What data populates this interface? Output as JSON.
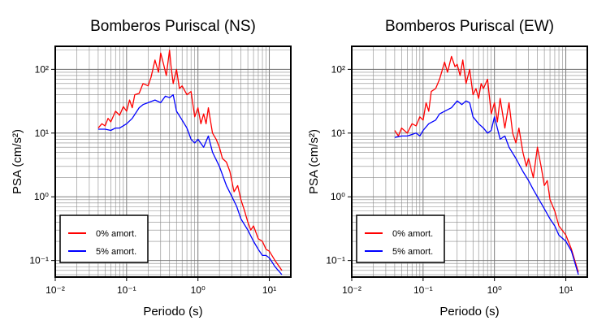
{
  "chart_data": [
    {
      "type": "line",
      "title": "Bomberos Puriscal (NS)",
      "xlabel": "Periodo (s)",
      "ylabel": "PSA (cm/s²)",
      "x_scale": "log",
      "y_scale": "log",
      "xlim": [
        0.01,
        20
      ],
      "ylim": [
        0.055,
        230
      ],
      "x_ticks": [
        "10⁻²",
        "10⁻¹",
        "10⁰",
        "10¹"
      ],
      "y_ticks": [
        "10⁻¹",
        "10⁰",
        "10¹",
        "10²"
      ],
      "grid": true,
      "legend_placement": "bottom-left",
      "series": [
        {
          "name": "0% amort.",
          "color": "#ff0000",
          "x": [
            0.04,
            0.045,
            0.05,
            0.055,
            0.06,
            0.07,
            0.08,
            0.09,
            0.1,
            0.11,
            0.12,
            0.13,
            0.15,
            0.17,
            0.2,
            0.22,
            0.25,
            0.28,
            0.3,
            0.33,
            0.36,
            0.4,
            0.42,
            0.45,
            0.5,
            0.55,
            0.6,
            0.7,
            0.8,
            0.9,
            1.0,
            1.1,
            1.2,
            1.3,
            1.4,
            1.6,
            1.8,
            2.0,
            2.2,
            2.5,
            2.8,
            3.2,
            3.6,
            4.0,
            4.5,
            5.0,
            5.5,
            6.0,
            7.0,
            8.0,
            9.0,
            10.0,
            12.0,
            15.0
          ],
          "y": [
            12,
            14,
            13,
            17,
            15,
            22,
            19,
            26,
            22,
            33,
            25,
            40,
            42,
            60,
            55,
            75,
            140,
            90,
            180,
            120,
            80,
            200,
            110,
            60,
            100,
            50,
            55,
            40,
            45,
            18,
            25,
            14,
            20,
            14,
            25,
            10,
            8,
            6,
            4,
            3.5,
            2.5,
            1.2,
            1.5,
            0.9,
            0.6,
            0.4,
            0.3,
            0.35,
            0.22,
            0.2,
            0.15,
            0.14,
            0.1,
            0.07
          ]
        },
        {
          "name": "5% amort.",
          "color": "#0000ff",
          "x": [
            0.04,
            0.05,
            0.06,
            0.07,
            0.08,
            0.1,
            0.12,
            0.15,
            0.17,
            0.2,
            0.25,
            0.3,
            0.35,
            0.4,
            0.45,
            0.5,
            0.6,
            0.7,
            0.8,
            0.9,
            1.0,
            1.2,
            1.4,
            1.6,
            2.0,
            2.5,
            3.0,
            3.5,
            4.0,
            5.0,
            6.0,
            7.0,
            8.0,
            9.0,
            10.0,
            12.0,
            15.0
          ],
          "y": [
            11.5,
            11.5,
            11,
            12,
            12,
            14,
            17,
            25,
            28,
            30,
            33,
            30,
            38,
            36,
            40,
            22,
            16,
            12,
            8,
            7,
            8,
            6,
            9,
            5,
            3,
            1.5,
            1.0,
            0.7,
            0.45,
            0.3,
            0.2,
            0.15,
            0.12,
            0.12,
            0.11,
            0.08,
            0.06
          ]
        }
      ]
    },
    {
      "type": "line",
      "title": "Bomberos Puriscal (EW)",
      "xlabel": "Periodo (s)",
      "ylabel": "PSA (cm/s²)",
      "x_scale": "log",
      "y_scale": "log",
      "xlim": [
        0.01,
        20
      ],
      "ylim": [
        0.055,
        230
      ],
      "x_ticks": [
        "10⁻²",
        "10⁻¹",
        "10⁰",
        "10¹"
      ],
      "y_ticks": [
        "10⁻¹",
        "10⁰",
        "10¹",
        "10²"
      ],
      "grid": true,
      "legend_placement": "bottom-left",
      "series": [
        {
          "name": "0% amort.",
          "color": "#ff0000",
          "x": [
            0.04,
            0.045,
            0.05,
            0.06,
            0.07,
            0.08,
            0.09,
            0.1,
            0.11,
            0.12,
            0.13,
            0.15,
            0.17,
            0.2,
            0.22,
            0.25,
            0.28,
            0.3,
            0.33,
            0.36,
            0.4,
            0.45,
            0.5,
            0.55,
            0.6,
            0.65,
            0.7,
            0.8,
            0.9,
            1.0,
            1.1,
            1.2,
            1.4,
            1.6,
            1.8,
            2.0,
            2.2,
            2.5,
            2.8,
            3.0,
            3.5,
            4.0,
            4.5,
            5.0,
            5.5,
            6.0,
            7.0,
            8.0,
            10.0,
            12.0,
            15.0
          ],
          "y": [
            11,
            9,
            12,
            10,
            14,
            13,
            18,
            16,
            30,
            22,
            45,
            50,
            70,
            130,
            90,
            160,
            110,
            120,
            80,
            140,
            60,
            100,
            40,
            50,
            35,
            60,
            50,
            70,
            20,
            30,
            15,
            35,
            12,
            30,
            10,
            7,
            12,
            5,
            3,
            4,
            2,
            6,
            3,
            1.5,
            1.8,
            0.9,
            0.6,
            0.35,
            0.25,
            0.15,
            0.065
          ]
        },
        {
          "name": "5% amort.",
          "color": "#0000ff",
          "x": [
            0.04,
            0.05,
            0.06,
            0.07,
            0.08,
            0.09,
            0.1,
            0.12,
            0.15,
            0.17,
            0.2,
            0.25,
            0.3,
            0.35,
            0.4,
            0.45,
            0.5,
            0.6,
            0.7,
            0.8,
            0.9,
            1.0,
            1.2,
            1.4,
            1.6,
            2.0,
            2.5,
            3.0,
            3.5,
            4.0,
            5.0,
            6.0,
            7.0,
            8.0,
            10.0,
            12.0,
            15.0
          ],
          "y": [
            8.5,
            9,
            9,
            9.5,
            10,
            9,
            11,
            14,
            16,
            20,
            22,
            25,
            32,
            28,
            32,
            30,
            18,
            14,
            12,
            10,
            11,
            18,
            8,
            9,
            6,
            4,
            2.5,
            1.8,
            1.3,
            1.0,
            0.65,
            0.45,
            0.35,
            0.25,
            0.2,
            0.14,
            0.06
          ]
        }
      ]
    }
  ]
}
